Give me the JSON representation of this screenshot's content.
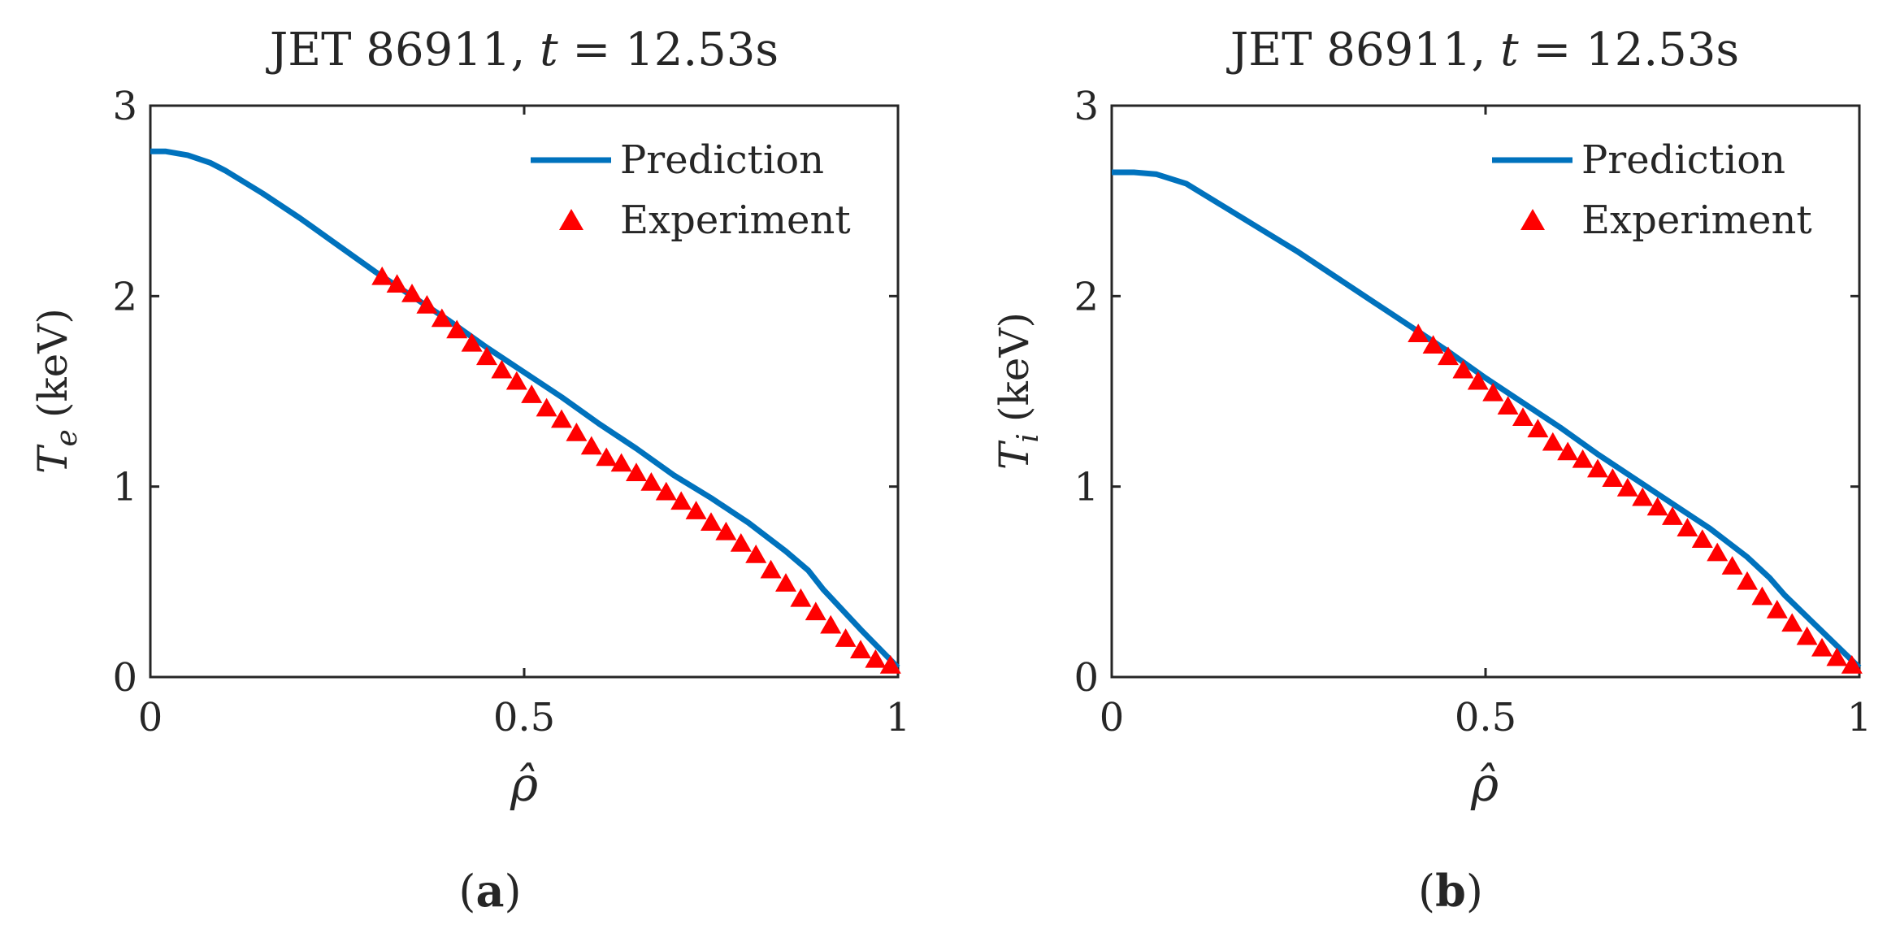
{
  "chart_data": [
    {
      "type": "line",
      "panel_label": "a",
      "title": "JET 86911, t = 12.53s",
      "title_parts": {
        "prefix": "JET 86911, ",
        "var": "t",
        "suffix": " = 12.53s"
      },
      "ylabel": {
        "symbol": "T",
        "subscript": "e",
        "unit": "(keV)"
      },
      "xlabel": "ρ̂",
      "xlim": [
        0,
        1
      ],
      "ylim": [
        0,
        3
      ],
      "xticks": [
        0,
        0.5,
        1
      ],
      "xtick_labels": [
        "0",
        "0.5",
        "1"
      ],
      "yticks": [
        0,
        1,
        2,
        3
      ],
      "ytick_labels": [
        "0",
        "1",
        "2",
        "3"
      ],
      "legend": {
        "position": "top-right",
        "entries": [
          "Prediction",
          "Experiment"
        ]
      },
      "series": [
        {
          "name": "Prediction",
          "color": "#0072BD",
          "x": [
            0.0,
            0.02,
            0.05,
            0.08,
            0.1,
            0.15,
            0.2,
            0.25,
            0.3,
            0.35,
            0.4,
            0.45,
            0.5,
            0.55,
            0.6,
            0.65,
            0.7,
            0.75,
            0.8,
            0.85,
            0.88,
            0.9,
            0.95,
            1.0
          ],
          "y": [
            2.76,
            2.76,
            2.74,
            2.7,
            2.66,
            2.54,
            2.41,
            2.27,
            2.13,
            2.0,
            1.87,
            1.73,
            1.6,
            1.47,
            1.33,
            1.2,
            1.06,
            0.94,
            0.81,
            0.66,
            0.56,
            0.46,
            0.25,
            0.05
          ]
        },
        {
          "name": "Experiment",
          "color": "#FF0000",
          "marker": "triangle",
          "x": [
            0.31,
            0.33,
            0.35,
            0.37,
            0.39,
            0.41,
            0.43,
            0.45,
            0.47,
            0.49,
            0.51,
            0.53,
            0.55,
            0.57,
            0.59,
            0.61,
            0.63,
            0.65,
            0.67,
            0.69,
            0.71,
            0.73,
            0.75,
            0.77,
            0.79,
            0.81,
            0.83,
            0.85,
            0.87,
            0.89,
            0.91,
            0.93,
            0.95,
            0.97,
            0.99
          ],
          "y": [
            2.1,
            2.06,
            2.01,
            1.95,
            1.88,
            1.82,
            1.75,
            1.68,
            1.61,
            1.55,
            1.48,
            1.41,
            1.35,
            1.28,
            1.21,
            1.15,
            1.12,
            1.07,
            1.02,
            0.97,
            0.92,
            0.87,
            0.81,
            0.76,
            0.7,
            0.64,
            0.56,
            0.49,
            0.41,
            0.34,
            0.27,
            0.2,
            0.14,
            0.09,
            0.06
          ]
        }
      ]
    },
    {
      "type": "line",
      "panel_label": "b",
      "title": "JET 86911, t = 12.53s",
      "title_parts": {
        "prefix": "JET 86911, ",
        "var": "t",
        "suffix": " = 12.53s"
      },
      "ylabel": {
        "symbol": "T",
        "subscript": "i",
        "unit": "(keV)"
      },
      "xlabel": "ρ̂",
      "xlim": [
        0,
        1
      ],
      "ylim": [
        0,
        3
      ],
      "xticks": [
        0,
        0.5,
        1
      ],
      "xtick_labels": [
        "0",
        "0.5",
        "1"
      ],
      "yticks": [
        0,
        1,
        2,
        3
      ],
      "ytick_labels": [
        "0",
        "1",
        "2",
        "3"
      ],
      "legend": {
        "position": "top-right",
        "entries": [
          "Prediction",
          "Experiment"
        ]
      },
      "series": [
        {
          "name": "Prediction",
          "color": "#0072BD",
          "x": [
            0.0,
            0.03,
            0.06,
            0.1,
            0.15,
            0.2,
            0.25,
            0.3,
            0.35,
            0.4,
            0.45,
            0.5,
            0.55,
            0.6,
            0.65,
            0.7,
            0.75,
            0.8,
            0.85,
            0.88,
            0.9,
            0.95,
            1.0
          ],
          "y": [
            2.65,
            2.65,
            2.64,
            2.59,
            2.47,
            2.35,
            2.23,
            2.1,
            1.97,
            1.84,
            1.71,
            1.57,
            1.44,
            1.31,
            1.17,
            1.04,
            0.91,
            0.78,
            0.63,
            0.52,
            0.43,
            0.24,
            0.05
          ]
        },
        {
          "name": "Experiment",
          "color": "#FF0000",
          "marker": "triangle",
          "x": [
            0.41,
            0.43,
            0.45,
            0.47,
            0.49,
            0.51,
            0.53,
            0.55,
            0.57,
            0.59,
            0.61,
            0.63,
            0.65,
            0.67,
            0.69,
            0.71,
            0.73,
            0.75,
            0.77,
            0.79,
            0.81,
            0.83,
            0.85,
            0.87,
            0.89,
            0.91,
            0.93,
            0.95,
            0.97,
            0.99
          ],
          "y": [
            1.8,
            1.74,
            1.68,
            1.61,
            1.55,
            1.49,
            1.42,
            1.36,
            1.3,
            1.23,
            1.18,
            1.14,
            1.09,
            1.04,
            0.99,
            0.94,
            0.89,
            0.84,
            0.78,
            0.72,
            0.65,
            0.58,
            0.5,
            0.42,
            0.35,
            0.28,
            0.21,
            0.15,
            0.1,
            0.06
          ]
        }
      ]
    }
  ]
}
